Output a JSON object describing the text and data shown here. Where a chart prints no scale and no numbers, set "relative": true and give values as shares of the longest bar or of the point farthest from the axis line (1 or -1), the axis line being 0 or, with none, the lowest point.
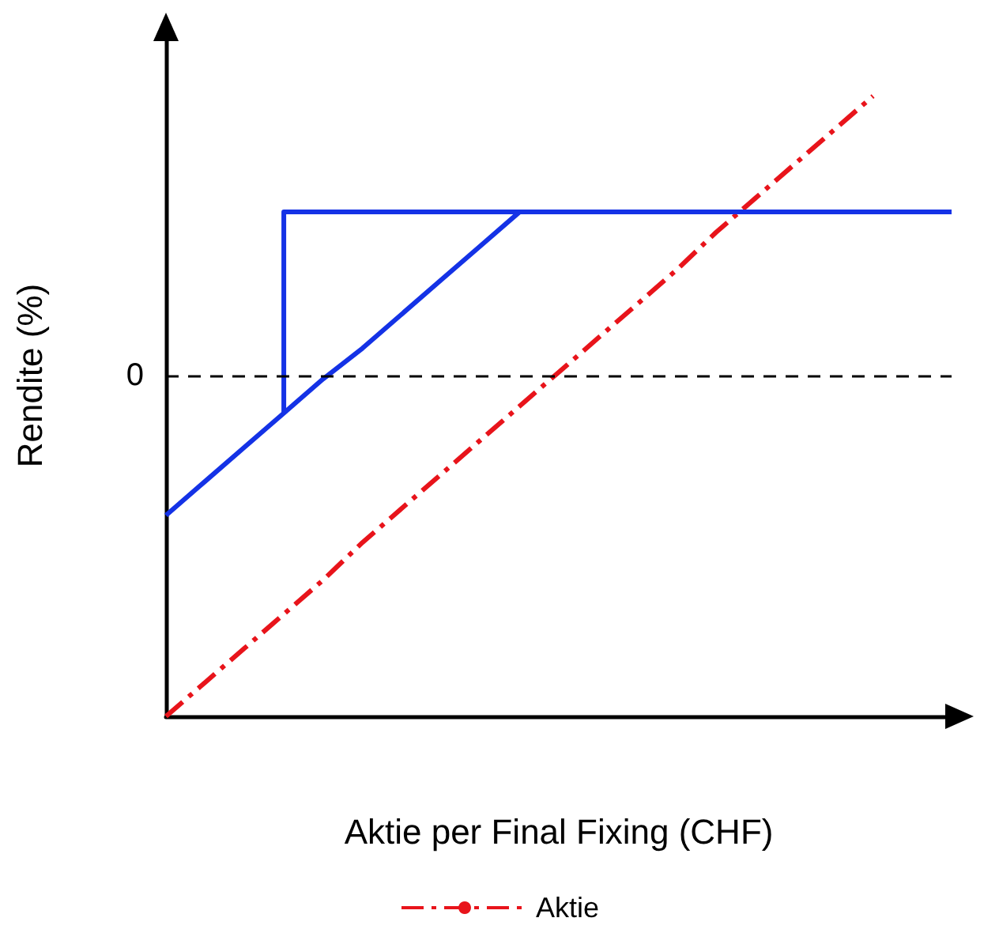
{
  "chart_data": {
    "type": "line",
    "xlabel": "Aktie per Final Fixing (CHF)",
    "ylabel": "Rendite (%)",
    "relative": true,
    "grid": false,
    "legend": "bottom",
    "marker": "none",
    "categories": [
      null,
      null,
      null,
      null,
      null,
      null,
      null,
      null,
      null,
      null,
      null,
      null,
      null,
      null,
      null,
      null,
      null,
      null,
      null,
      null,
      null
    ],
    "series": [
      {
        "name": "Aktie",
        "color": "#e8141b",
        "line_style": "dashed",
        "values": [
          -1,
          -0.9,
          -0.8,
          -0.7,
          -0.6,
          -0.49,
          -0.39,
          -0.29,
          -0.19,
          -0.09,
          0.01,
          0.11,
          0.21,
          0.31,
          0.42,
          0.52,
          0.62,
          0.72,
          0.82,
          null,
          null
        ]
      },
      {
        "color": "#1432e6",
        "line_style": "solid",
        "values": [
          -0.41,
          -0.31,
          -0.21,
          -0.11,
          -0.01,
          0.08,
          0.18,
          0.28,
          0.38,
          0.48,
          0.48,
          0.48,
          0.48,
          0.48,
          0.48,
          0.48,
          0.48,
          0.48,
          0.48,
          0.48,
          0.48
        ]
      },
      {
        "type": "step",
        "color": "#1432e6",
        "line_style": "solid",
        "values": [
          null,
          null,
          null,
          -0.11,
          0.48,
          0.48,
          0.48,
          0.48,
          0.48,
          0.48,
          null,
          null,
          null,
          null,
          null,
          null,
          null,
          null,
          null,
          null,
          null
        ]
      }
    ],
    "ref_lines": [
      {
        "axis": "y",
        "value": 0,
        "label": "0",
        "color": "#000000",
        "line_style": "dashed"
      }
    ]
  }
}
